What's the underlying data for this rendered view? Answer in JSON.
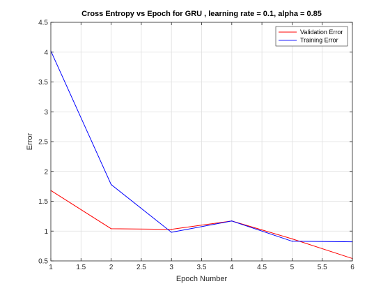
{
  "chart_data": {
    "type": "line",
    "title": "Cross Entropy vs Epoch for GRU , learning rate = 0.1, alpha = 0.85",
    "xlabel": "Epoch Number",
    "ylabel": "Error",
    "xlim": [
      1,
      6
    ],
    "ylim": [
      0.5,
      4.5
    ],
    "xticks": [
      1,
      1.5,
      2,
      2.5,
      3,
      3.5,
      4,
      4.5,
      5,
      5.5,
      6
    ],
    "xtick_labels": [
      "1",
      "1.5",
      "2",
      "2.5",
      "3",
      "3.5",
      "4",
      "4.5",
      "5",
      "5.5",
      "6"
    ],
    "yticks": [
      0.5,
      1,
      1.5,
      2,
      2.5,
      3,
      3.5,
      4,
      4.5
    ],
    "ytick_labels": [
      "0.5",
      "1",
      "1.5",
      "2",
      "2.5",
      "3",
      "3.5",
      "4",
      "4.5"
    ],
    "grid": true,
    "legend_position": "top-right",
    "x": [
      1,
      2,
      3,
      4,
      5,
      6
    ],
    "series": [
      {
        "name": "Validation Error",
        "color": "#ff0000",
        "values": [
          1.68,
          1.04,
          1.03,
          1.17,
          0.87,
          0.54
        ]
      },
      {
        "name": "Training Error",
        "color": "#0000ff",
        "values": [
          4.02,
          1.78,
          0.98,
          1.17,
          0.83,
          0.82
        ]
      }
    ]
  }
}
